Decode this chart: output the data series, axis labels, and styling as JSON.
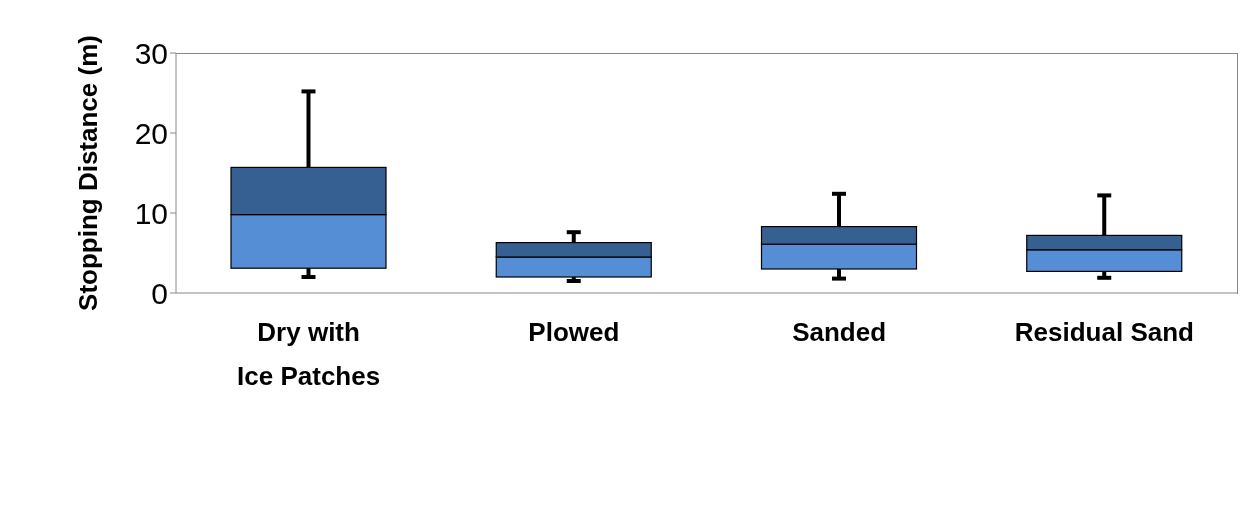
{
  "chart_data": {
    "type": "box",
    "ylabel": "Stopping Distance (m)",
    "categories": [
      "Dry with Ice Patches",
      "Plowed",
      "Sanded",
      "Residual Sand"
    ],
    "color": "#366092",
    "series": [
      {
        "color": "#558ed5",
        "boxes": [
          {
            "low": 2.0,
            "q1": 3.1,
            "median": 9.8,
            "q3": 15.7,
            "high": 25.2
          },
          {
            "low": 1.5,
            "q1": 2.0,
            "median": 4.5,
            "q3": 6.3,
            "high": 7.6
          },
          {
            "low": 1.8,
            "q1": 3.0,
            "median": 6.1,
            "q3": 8.3,
            "high": 12.4
          },
          {
            "low": 1.9,
            "q1": 2.7,
            "median": 5.4,
            "q3": 7.2,
            "high": 12.2
          }
        ]
      }
    ],
    "ylim": [
      0,
      30
    ],
    "yticks": [
      0,
      10,
      20,
      30
    ],
    "grid": false,
    "legend": false
  }
}
